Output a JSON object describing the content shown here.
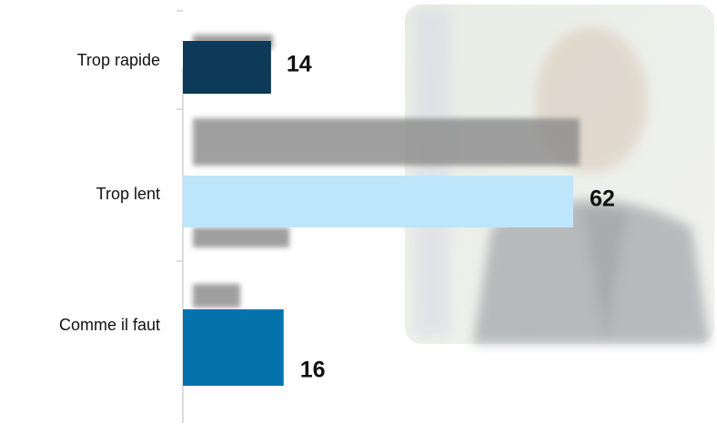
{
  "chart_data": {
    "type": "bar",
    "orientation": "horizontal",
    "categories": [
      "Trop rapide",
      "Trop lent",
      "Comme il faut"
    ],
    "values": [
      14,
      62,
      16
    ],
    "colors": [
      "#0d3a58",
      "#bde6fb",
      "#0573ab"
    ]
  }
}
